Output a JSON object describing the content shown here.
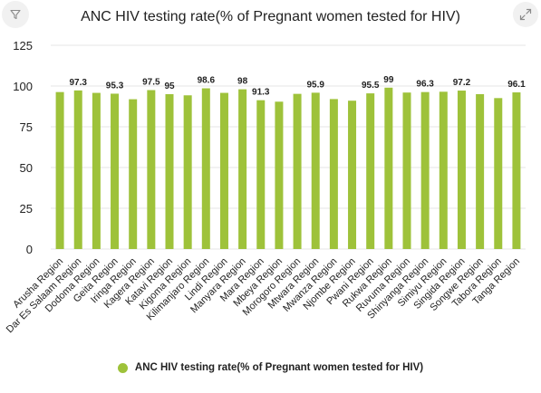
{
  "toolbar": {
    "filter_icon": "filter-icon",
    "expand_icon": "expand-icon"
  },
  "colors": {
    "bar": "#9ec23a",
    "grid": "#e6e6e6",
    "axis_text": "#222222"
  },
  "chart_data": {
    "type": "bar",
    "title": "ANC HIV testing rate(% of Pregnant women tested for HIV)",
    "xlabel": "",
    "ylabel": "",
    "ylim": [
      0,
      125
    ],
    "yticks": [
      0,
      25,
      50,
      75,
      100,
      125
    ],
    "grid": true,
    "legend_position": "bottom",
    "categories": [
      "Arusha Region",
      "Dar Es Salaam Region",
      "Dodoma Region",
      "Geita Region",
      "Iringa Region",
      "Kagera Region",
      "Katavi Region",
      "Kigoma Region",
      "Kilimanjaro Region",
      "Lindi Region",
      "Manyara Region",
      "Mara Region",
      "Mbeya Region",
      "Morogoro Region",
      "Mtwara Region",
      "Mwanza Region",
      "Njombe Region",
      "Pwani Region",
      "Rukwa Region",
      "Ruvuma Region",
      "Shinyanga Region",
      "Simiyu Region",
      "Singida Region",
      "Songwe Region",
      "Tabora Region",
      "Tanga Region"
    ],
    "series": [
      {
        "name": "ANC HIV testing rate(% of Pregnant women tested for HIV)",
        "values": [
          96.3,
          97.3,
          95.8,
          95.3,
          91.9,
          97.5,
          95,
          94.3,
          98.6,
          95.8,
          98,
          91.3,
          90.4,
          95.2,
          95.9,
          92,
          91,
          95.5,
          99,
          96,
          96.3,
          96.5,
          97.2,
          95,
          92.6,
          96.1
        ],
        "labels": [
          "",
          "97.3",
          "",
          "95.3",
          "",
          "97.5",
          "95",
          "",
          "98.6",
          "",
          "98",
          "91.3",
          "",
          "",
          "95.9",
          "",
          "",
          "95.5",
          "99",
          "",
          "96.3",
          "",
          "97.2",
          "",
          "",
          "96.1"
        ]
      }
    ]
  }
}
